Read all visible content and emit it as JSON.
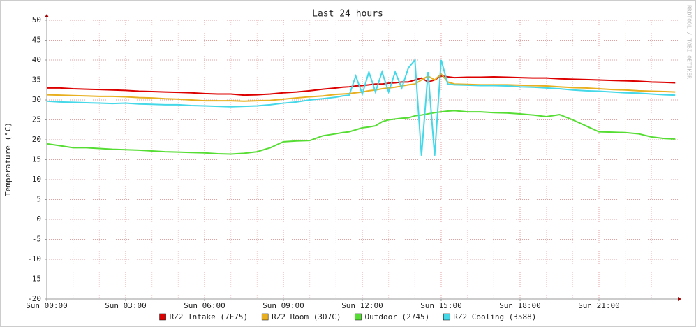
{
  "chart_data": {
    "type": "line",
    "title": "Last 24 hours",
    "y_label": "Temperature (°C)",
    "watermark": "RRDTOOL / TOBI OETIKER",
    "x": [
      0,
      0.5,
      1,
      1.5,
      2,
      2.5,
      3,
      3.5,
      4,
      4.5,
      5,
      5.5,
      6,
      6.5,
      7,
      7.5,
      8,
      8.5,
      9,
      9.5,
      10,
      10.5,
      11,
      11.25,
      11.5,
      11.75,
      12,
      12.25,
      12.5,
      12.75,
      13,
      13.25,
      13.5,
      13.75,
      14,
      14.25,
      14.5,
      14.75,
      15,
      15.25,
      15.5,
      16,
      16.5,
      17,
      17.5,
      18,
      18.5,
      19,
      19.5,
      20,
      20.5,
      21,
      21.5,
      22,
      22.5,
      23,
      23.5,
      23.9
    ],
    "series": [
      {
        "name": "RZ2 Intake (7F75)",
        "color": "#dd0000",
        "values": [
          33,
          33,
          32.8,
          32.7,
          32.6,
          32.5,
          32.4,
          32.2,
          32.1,
          32,
          31.9,
          31.8,
          31.6,
          31.5,
          31.5,
          31.2,
          31.3,
          31.5,
          31.8,
          32,
          32.3,
          32.7,
          33,
          33.2,
          33.3,
          33.5,
          33.6,
          33.8,
          34,
          34,
          34.2,
          34.3,
          34.5,
          34.5,
          35,
          35.5,
          34.5,
          35,
          36,
          35.8,
          35.6,
          35.7,
          35.7,
          35.8,
          35.7,
          35.6,
          35.5,
          35.5,
          35.3,
          35.2,
          35.1,
          35,
          34.9,
          34.8,
          34.7,
          34.5,
          34.4,
          34.3
        ]
      },
      {
        "name": "RZ2 Room (3D7C)",
        "color": "#e8b020",
        "values": [
          31.3,
          31.2,
          31.1,
          31,
          30.9,
          30.9,
          30.8,
          30.6,
          30.5,
          30.3,
          30.2,
          30,
          29.8,
          29.8,
          29.8,
          29.7,
          29.8,
          29.9,
          30.2,
          30.5,
          30.8,
          31,
          31.4,
          31.5,
          31.6,
          31.8,
          32,
          32.3,
          32.5,
          32.8,
          33,
          33.2,
          33.5,
          33.8,
          34,
          35,
          36,
          35,
          36.5,
          34.5,
          34,
          33.9,
          33.8,
          33.8,
          33.8,
          33.7,
          33.6,
          33.5,
          33.3,
          33.1,
          33,
          32.8,
          32.6,
          32.5,
          32.3,
          32.2,
          32.1,
          32
        ]
      },
      {
        "name": "Outdoor (2745)",
        "color": "#55dd33",
        "values": [
          19,
          18.5,
          18,
          18,
          17.8,
          17.6,
          17.5,
          17.4,
          17.2,
          17,
          16.9,
          16.8,
          16.7,
          16.5,
          16.4,
          16.6,
          17,
          18,
          19.5,
          19.7,
          19.8,
          21,
          21.5,
          21.8,
          22,
          22.5,
          23,
          23.2,
          23.5,
          24.5,
          25,
          25.2,
          25.4,
          25.5,
          26,
          26.2,
          26.5,
          26.8,
          27,
          27.2,
          27.3,
          27,
          27,
          26.8,
          26.7,
          26.5,
          26.2,
          25.8,
          26.3,
          25,
          23.5,
          22,
          21.9,
          21.8,
          21.5,
          20.7,
          20.3,
          20.2
        ]
      },
      {
        "name": "RZ2 Cooling (3588)",
        "color": "#44d8e8",
        "values": [
          29.7,
          29.5,
          29.4,
          29.3,
          29.2,
          29.1,
          29.2,
          29,
          28.9,
          28.8,
          28.8,
          28.6,
          28.5,
          28.4,
          28.3,
          28.4,
          28.5,
          28.8,
          29.2,
          29.5,
          30,
          30.3,
          30.7,
          31,
          31.2,
          36,
          31.5,
          37,
          32,
          37,
          32,
          37,
          33,
          38,
          40,
          16,
          37,
          16,
          40,
          34,
          33.8,
          33.7,
          33.6,
          33.6,
          33.5,
          33.3,
          33.2,
          33,
          32.8,
          32.5,
          32.3,
          32.2,
          32,
          31.8,
          31.7,
          31.5,
          31.3,
          31.2
        ]
      }
    ],
    "xlim": [
      0,
      24
    ],
    "xticks": [
      {
        "value": 0,
        "label": "Sun 00:00"
      },
      {
        "value": 3,
        "label": "Sun 03:00"
      },
      {
        "value": 6,
        "label": "Sun 06:00"
      },
      {
        "value": 9,
        "label": "Sun 09:00"
      },
      {
        "value": 12,
        "label": "Sun 12:00"
      },
      {
        "value": 15,
        "label": "Sun 15:00"
      },
      {
        "value": 18,
        "label": "Sun 18:00"
      },
      {
        "value": 21,
        "label": "Sun 21:00"
      }
    ],
    "ylim": [
      -20,
      50
    ],
    "yticks": [
      -20,
      -15,
      -10,
      -5,
      0,
      5,
      10,
      15,
      20,
      25,
      30,
      35,
      40,
      45,
      50
    ],
    "grid": true
  }
}
